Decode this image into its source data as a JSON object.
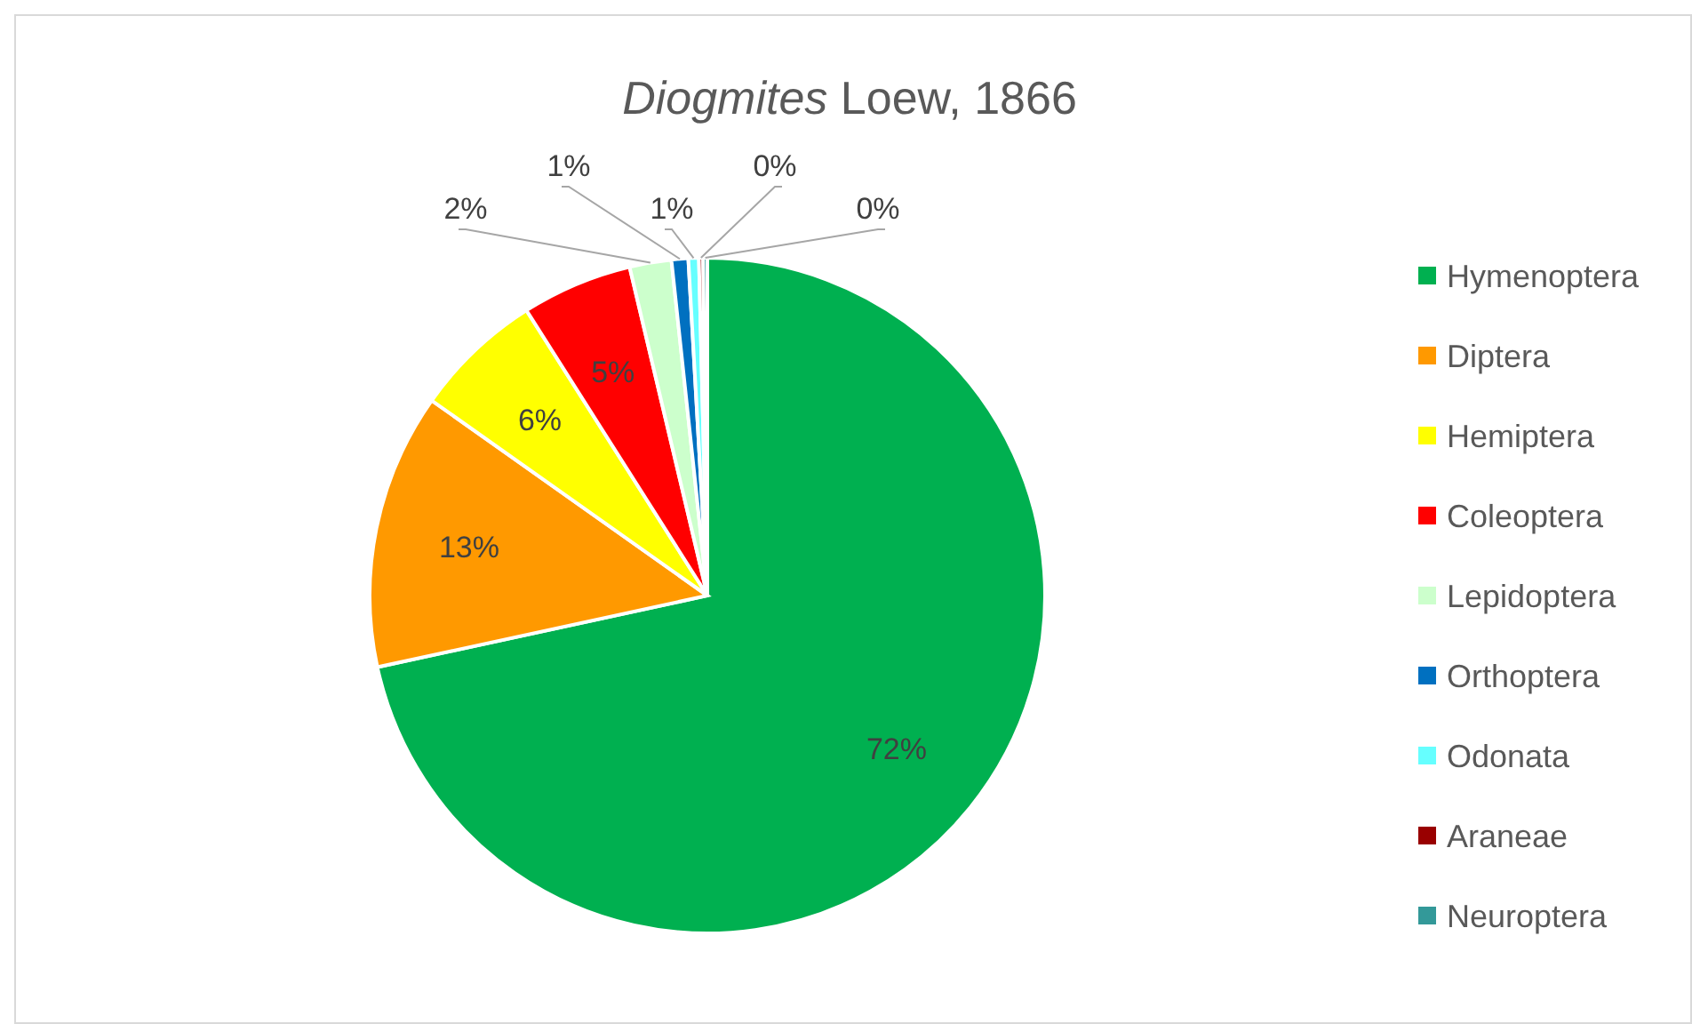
{
  "chart_data": {
    "type": "pie",
    "title": "Diogmites Loew, 1866",
    "categories": [
      "Hymenoptera",
      "Diptera",
      "Hemiptera",
      "Coleoptera",
      "Lepidoptera",
      "Orthoptera",
      "Odonata",
      "Araneae",
      "Neuroptera"
    ],
    "values": [
      71.6,
      13.2,
      6.2,
      5.3,
      2.0,
      0.8,
      0.5,
      0.2,
      0.2
    ],
    "value_labels": [
      "72%",
      "13%",
      "6%",
      "5%",
      "2%",
      "1%",
      "1%",
      "0%",
      "0%"
    ],
    "colors": [
      "#00b050",
      "#ff9900",
      "#ffff00",
      "#ff0000",
      "#ccffcc",
      "#0070c0",
      "#66ffff",
      "#990000",
      "#339999"
    ],
    "legend": "right"
  }
}
